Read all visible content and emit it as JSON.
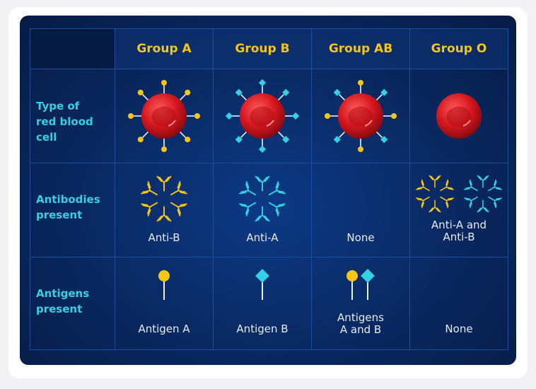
{
  "columns": [
    "Group A",
    "Group B",
    "Group AB",
    "Group O"
  ],
  "rows": {
    "cell_type": "Type of\nred blood\ncell",
    "antibodies": "Antibodies\npresent",
    "antigens": "Antigens\npresent"
  },
  "antibodies_values": [
    "Anti-B",
    "Anti-A",
    "None",
    "Anti-A and\nAnti-B"
  ],
  "antigens_values": [
    "Antigen A",
    "Antigen B",
    "Antigens\nA and B",
    "None"
  ],
  "colors": {
    "antigen_a": "#f5c518",
    "antigen_b": "#34d1e6",
    "header_text": "#f5c518",
    "row_label_text": "#34d1e6",
    "cell_red": "#d4161e"
  }
}
